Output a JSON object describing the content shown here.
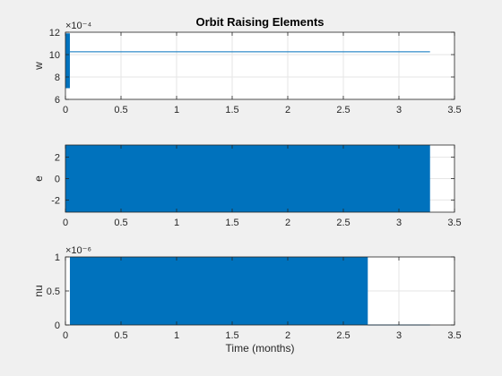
{
  "colors": {
    "series": "#0072bd",
    "grid": "#e6e6e6",
    "axis": "#262626",
    "background": "#f0f0f0"
  },
  "figure": {
    "title": "Orbit Raising Elements"
  },
  "chart_data": [
    {
      "type": "line",
      "title": "Orbit Raising Elements",
      "ylabel": "w",
      "xlabel": "",
      "xlim": [
        0,
        3.5
      ],
      "ylim": [
        6,
        12
      ],
      "xticks": [
        0,
        0.5,
        1,
        1.5,
        2,
        2.5,
        3,
        3.5
      ],
      "yticks": [
        6,
        8,
        10,
        12
      ],
      "exponent_label": "×10⁻⁴",
      "grid": true,
      "series": [
        {
          "oscillation_band": {
            "x_start": 0.0,
            "x_end": 0.04,
            "y_min": 7.0,
            "y_max": 11.9
          },
          "x": [
            0.04,
            3.28
          ],
          "y": [
            10.25,
            10.25
          ]
        }
      ]
    },
    {
      "type": "line",
      "title": "",
      "ylabel": "e",
      "xlabel": "",
      "xlim": [
        0,
        3.5
      ],
      "ylim": [
        -3.1416,
        3.1416
      ],
      "xticks": [
        0,
        0.5,
        1,
        1.5,
        2,
        2.5,
        3,
        3.5
      ],
      "yticks": [
        -2,
        0,
        2
      ],
      "grid": true,
      "series": [
        {
          "oscillation_band": {
            "x_start": 0.0,
            "x_end": 3.28,
            "y_min": -3.1416,
            "y_max": 3.1416
          }
        }
      ]
    },
    {
      "type": "line",
      "title": "",
      "ylabel": "nu",
      "xlabel": "Time (months)",
      "xlim": [
        0,
        3.5
      ],
      "ylim": [
        0,
        1
      ],
      "xticks": [
        0,
        0.5,
        1,
        1.5,
        2,
        2.5,
        3,
        3.5
      ],
      "yticks": [
        0,
        0.5,
        1
      ],
      "exponent_label": "×10⁻⁶",
      "grid": true,
      "series": [
        {
          "oscillation_band": {
            "x_start": 0.04,
            "x_end": 2.72,
            "y_min": 0,
            "y_max": 1
          },
          "x": [
            2.72,
            3.28
          ],
          "y": [
            0.0,
            0.0
          ]
        }
      ]
    }
  ]
}
